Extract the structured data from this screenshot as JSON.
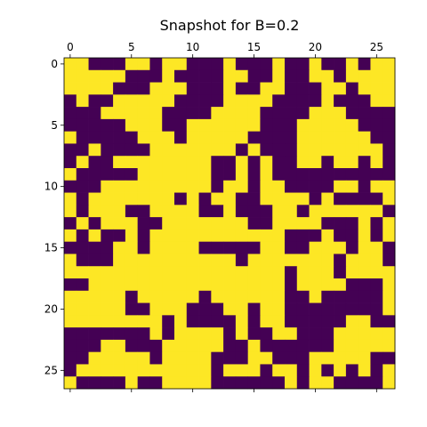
{
  "chart_data": {
    "type": "heatmap",
    "title": "Snapshot for B=0.2",
    "xlabel": "",
    "ylabel": "",
    "x_ticks": [
      0,
      5,
      10,
      15,
      20,
      25
    ],
    "y_ticks": [
      0,
      5,
      10,
      15,
      20,
      25
    ],
    "x_axis_position": "top",
    "rows": 27,
    "cols": 27,
    "colors": {
      "0": "#440154",
      "1": "#fde725"
    },
    "grid": false,
    "values": [
      [
        1,
        1,
        0,
        0,
        0,
        1,
        1,
        0,
        1,
        1,
        0,
        0,
        0,
        1,
        0,
        0,
        0,
        1,
        0,
        0,
        1,
        0,
        0,
        1,
        0,
        1,
        1
      ],
      [
        1,
        1,
        1,
        1,
        1,
        0,
        0,
        0,
        1,
        0,
        0,
        0,
        0,
        1,
        1,
        0,
        0,
        1,
        0,
        0,
        1,
        1,
        0,
        1,
        1,
        1,
        1
      ],
      [
        1,
        1,
        1,
        1,
        0,
        0,
        0,
        1,
        1,
        1,
        0,
        0,
        0,
        1,
        0,
        0,
        1,
        1,
        0,
        0,
        0,
        1,
        1,
        0,
        1,
        1,
        1
      ],
      [
        0,
        1,
        0,
        0,
        1,
        1,
        1,
        1,
        1,
        0,
        0,
        0,
        0,
        1,
        1,
        1,
        1,
        0,
        0,
        0,
        0,
        1,
        0,
        0,
        0,
        1,
        1
      ],
      [
        0,
        0,
        0,
        1,
        1,
        1,
        1,
        1,
        0,
        0,
        0,
        0,
        1,
        1,
        1,
        1,
        0,
        0,
        0,
        0,
        1,
        1,
        1,
        0,
        0,
        0,
        0
      ],
      [
        0,
        0,
        0,
        0,
        0,
        1,
        1,
        1,
        0,
        0,
        1,
        1,
        1,
        1,
        1,
        1,
        0,
        0,
        0,
        1,
        1,
        1,
        1,
        1,
        0,
        0,
        0
      ],
      [
        1,
        0,
        0,
        0,
        0,
        0,
        1,
        1,
        1,
        0,
        1,
        1,
        1,
        1,
        1,
        0,
        0,
        0,
        0,
        1,
        1,
        1,
        1,
        1,
        1,
        0,
        0
      ],
      [
        0,
        0,
        1,
        0,
        0,
        0,
        0,
        1,
        1,
        1,
        1,
        1,
        1,
        1,
        0,
        1,
        0,
        0,
        0,
        1,
        1,
        1,
        1,
        1,
        1,
        1,
        0
      ],
      [
        0,
        1,
        0,
        0,
        1,
        1,
        1,
        1,
        1,
        1,
        1,
        1,
        0,
        0,
        1,
        0,
        1,
        0,
        0,
        1,
        1,
        0,
        1,
        1,
        0,
        1,
        0
      ],
      [
        1,
        0,
        0,
        0,
        0,
        0,
        1,
        1,
        1,
        1,
        1,
        1,
        0,
        0,
        1,
        0,
        1,
        0,
        0,
        0,
        0,
        0,
        0,
        0,
        0,
        0,
        0
      ],
      [
        0,
        0,
        0,
        1,
        1,
        1,
        1,
        1,
        1,
        1,
        1,
        1,
        0,
        1,
        1,
        0,
        1,
        1,
        0,
        0,
        0,
        0,
        1,
        1,
        0,
        1,
        1
      ],
      [
        1,
        0,
        1,
        1,
        1,
        1,
        1,
        1,
        1,
        0,
        1,
        0,
        1,
        1,
        0,
        0,
        1,
        1,
        1,
        1,
        0,
        1,
        0,
        0,
        0,
        0,
        1
      ],
      [
        1,
        0,
        1,
        1,
        1,
        0,
        0,
        1,
        1,
        1,
        1,
        0,
        0,
        1,
        0,
        0,
        0,
        1,
        1,
        0,
        1,
        1,
        1,
        1,
        1,
        1,
        0
      ],
      [
        0,
        1,
        0,
        1,
        1,
        1,
        0,
        0,
        1,
        1,
        1,
        1,
        1,
        1,
        1,
        0,
        0,
        1,
        1,
        1,
        1,
        0,
        0,
        0,
        1,
        0,
        1
      ],
      [
        1,
        0,
        1,
        0,
        0,
        1,
        0,
        1,
        1,
        1,
        1,
        1,
        1,
        1,
        1,
        1,
        1,
        1,
        0,
        0,
        0,
        1,
        0,
        0,
        1,
        0,
        1
      ],
      [
        0,
        0,
        0,
        0,
        1,
        1,
        0,
        1,
        1,
        1,
        1,
        0,
        0,
        0,
        0,
        0,
        1,
        1,
        0,
        0,
        1,
        1,
        1,
        0,
        1,
        1,
        0
      ],
      [
        1,
        0,
        0,
        0,
        1,
        1,
        1,
        1,
        1,
        1,
        1,
        1,
        1,
        1,
        0,
        1,
        1,
        1,
        1,
        1,
        1,
        1,
        0,
        1,
        1,
        1,
        0
      ],
      [
        1,
        1,
        1,
        1,
        1,
        1,
        1,
        1,
        1,
        1,
        1,
        1,
        1,
        1,
        1,
        1,
        1,
        1,
        0,
        1,
        1,
        1,
        0,
        1,
        1,
        1,
        1
      ],
      [
        0,
        0,
        1,
        1,
        1,
        1,
        1,
        1,
        1,
        1,
        1,
        1,
        1,
        1,
        1,
        1,
        1,
        1,
        0,
        1,
        1,
        1,
        1,
        0,
        0,
        0,
        1
      ],
      [
        1,
        1,
        1,
        1,
        1,
        0,
        1,
        1,
        1,
        1,
        1,
        0,
        1,
        1,
        1,
        1,
        1,
        1,
        0,
        0,
        1,
        0,
        0,
        0,
        0,
        0,
        1
      ],
      [
        1,
        1,
        1,
        1,
        1,
        0,
        0,
        1,
        1,
        1,
        0,
        0,
        0,
        1,
        1,
        0,
        1,
        1,
        0,
        0,
        0,
        0,
        0,
        0,
        0,
        0,
        1
      ],
      [
        1,
        1,
        1,
        1,
        1,
        1,
        1,
        1,
        0,
        1,
        0,
        0,
        0,
        0,
        1,
        0,
        1,
        1,
        0,
        0,
        0,
        0,
        0,
        1,
        1,
        0,
        0
      ],
      [
        0,
        0,
        0,
        0,
        0,
        0,
        0,
        1,
        0,
        1,
        1,
        1,
        1,
        0,
        1,
        0,
        0,
        1,
        1,
        0,
        0,
        0,
        1,
        1,
        1,
        1,
        1
      ],
      [
        0,
        0,
        0,
        1,
        1,
        0,
        0,
        0,
        1,
        1,
        1,
        1,
        1,
        0,
        0,
        1,
        0,
        0,
        0,
        0,
        0,
        0,
        1,
        1,
        1,
        1,
        1
      ],
      [
        0,
        0,
        1,
        1,
        1,
        1,
        1,
        0,
        1,
        1,
        1,
        1,
        0,
        0,
        0,
        1,
        1,
        0,
        0,
        0,
        1,
        1,
        1,
        1,
        1,
        0,
        0
      ],
      [
        0,
        1,
        1,
        1,
        1,
        1,
        1,
        1,
        1,
        1,
        1,
        1,
        0,
        1,
        1,
        1,
        0,
        1,
        1,
        0,
        1,
        0,
        1,
        0,
        1,
        0,
        1
      ],
      [
        1,
        0,
        0,
        0,
        0,
        1,
        0,
        0,
        1,
        1,
        1,
        1,
        0,
        0,
        0,
        0,
        0,
        0,
        1,
        0,
        1,
        1,
        0,
        0,
        0,
        0,
        1
      ]
    ]
  }
}
